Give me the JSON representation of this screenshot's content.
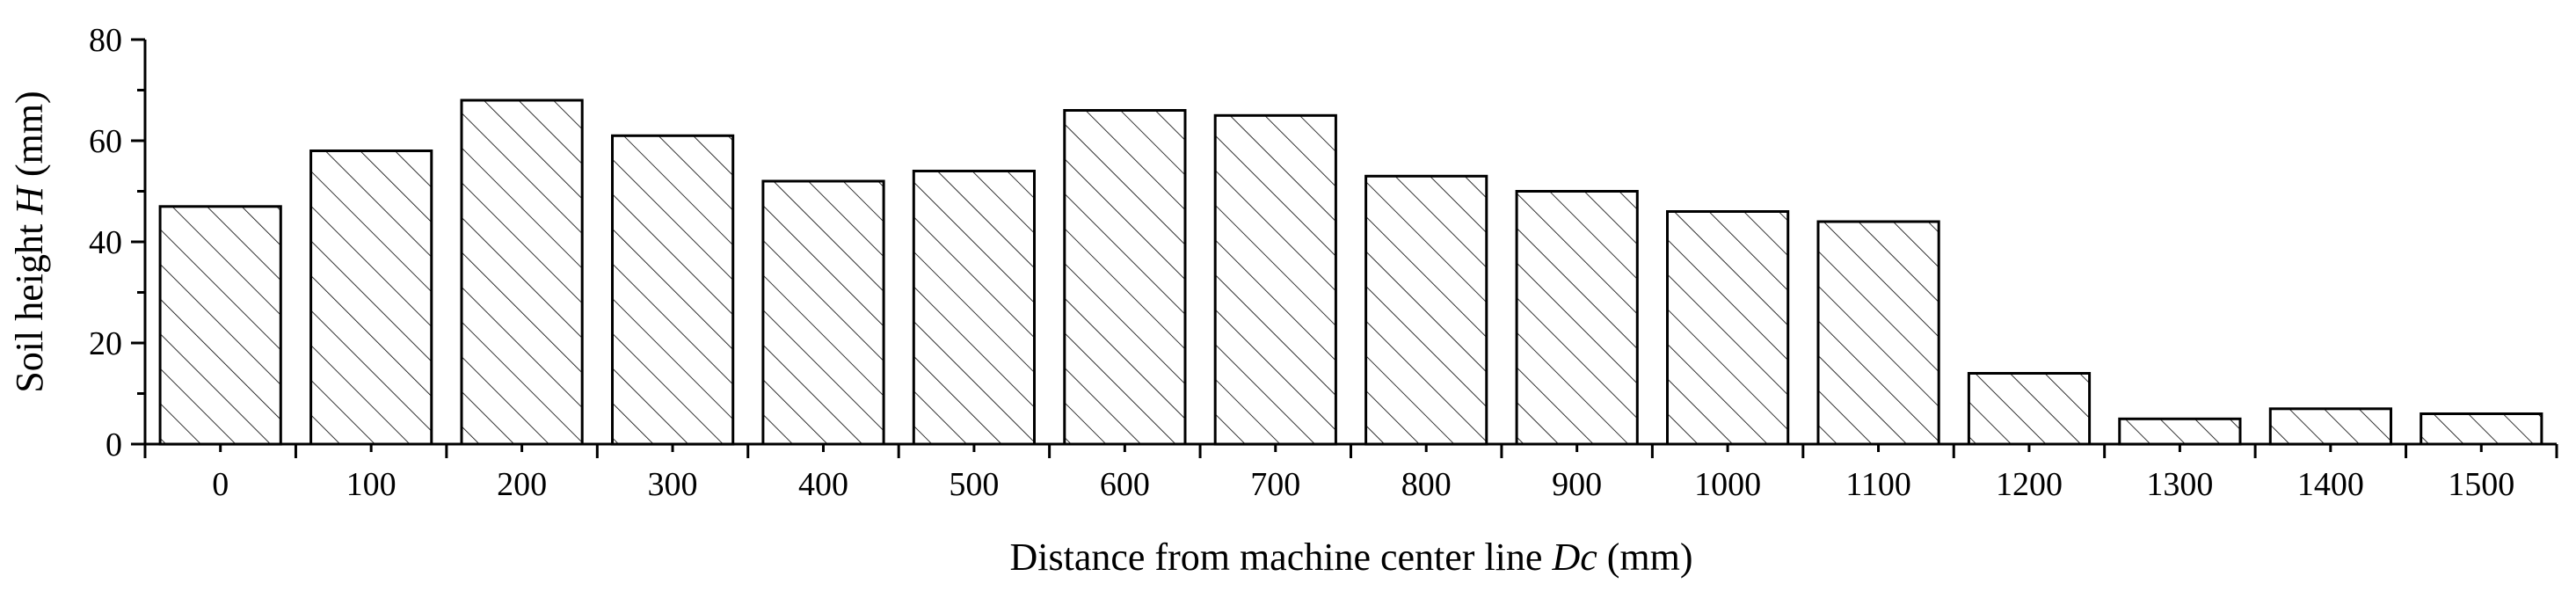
{
  "chart_data": {
    "type": "bar",
    "categories": [
      "0",
      "100",
      "200",
      "300",
      "400",
      "500",
      "600",
      "700",
      "800",
      "900",
      "1000",
      "1100",
      "1200",
      "1300",
      "1400",
      "1500"
    ],
    "values": [
      47,
      58,
      68,
      61,
      52,
      54,
      66,
      65,
      53,
      50,
      46,
      44,
      14,
      5,
      7,
      6
    ],
    "ylim": [
      0,
      80
    ],
    "yticks": [
      "0",
      "20",
      "40",
      "60",
      "80"
    ],
    "xlabel": {
      "text": "Distance from machine center line ",
      "symbol": "Dc",
      "unit": " (mm)"
    },
    "ylabel": {
      "text": "Soil height ",
      "symbol": "H",
      "unit": " (mm)"
    },
    "bar_fill": "diagonal-hatch",
    "colors": {
      "bar_stroke": "#000000",
      "hatch": "#000000",
      "background": "#ffffff"
    }
  }
}
